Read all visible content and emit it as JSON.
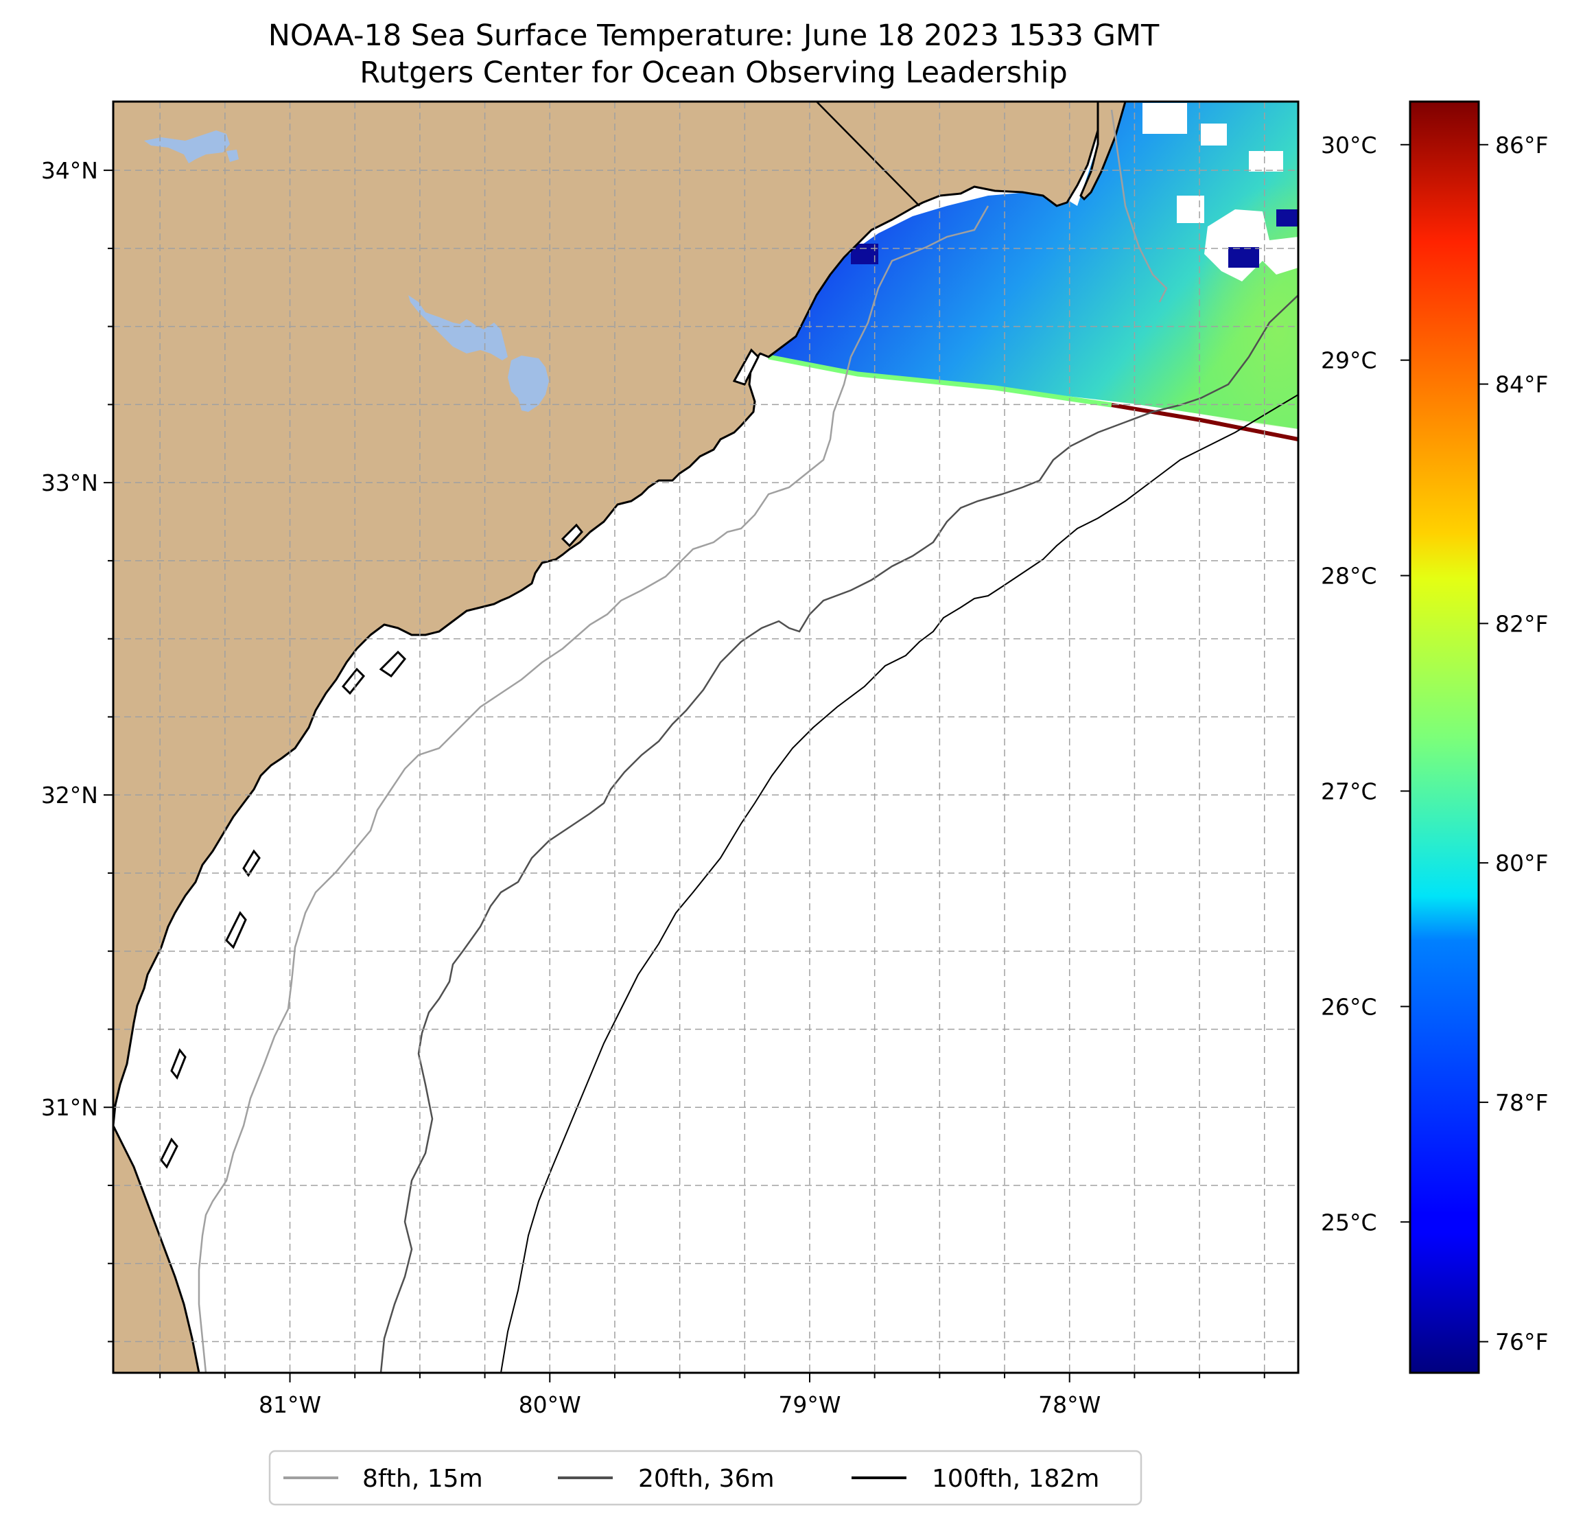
{
  "title": {
    "line1": "NOAA-18 Sea Surface Temperature: June 18 2023 1533 GMT",
    "line2": "Rutgers Center for Ocean Observing Leadership"
  },
  "map": {
    "lon_range": [
      -81.68,
      -77.12
    ],
    "lat_range": [
      30.15,
      34.22
    ],
    "land_color": "#d2b48c",
    "lake_color": "#a0bee6",
    "ocean_color": "#ffffff",
    "gridlines": "dashed",
    "lon_ticks": [
      {
        "value": -81,
        "label": "81°W"
      },
      {
        "value": -80,
        "label": "80°W"
      },
      {
        "value": -79,
        "label": "79°W"
      },
      {
        "value": -78,
        "label": "78°W"
      }
    ],
    "lat_ticks": [
      {
        "value": 34,
        "label": "34°N"
      },
      {
        "value": 33,
        "label": "33°N"
      },
      {
        "value": 32,
        "label": "32°N"
      },
      {
        "value": 31,
        "label": "31°N"
      }
    ]
  },
  "colorbar": {
    "colormap": "jet",
    "celsius_range": [
      24.3,
      30.2
    ],
    "celsius_ticks": [
      {
        "value": 30,
        "label": "30°C"
      },
      {
        "value": 29,
        "label": "29°C"
      },
      {
        "value": 28,
        "label": "28°C"
      },
      {
        "value": 27,
        "label": "27°C"
      },
      {
        "value": 26,
        "label": "26°C"
      },
      {
        "value": 25,
        "label": "25°C"
      }
    ],
    "fahrenheit_ticks": [
      {
        "value": 86,
        "label": "86°F"
      },
      {
        "value": 84,
        "label": "84°F"
      },
      {
        "value": 82,
        "label": "82°F"
      },
      {
        "value": 80,
        "label": "80°F"
      },
      {
        "value": 78,
        "label": "78°F"
      },
      {
        "value": 76,
        "label": "76°F"
      }
    ]
  },
  "legend": {
    "items": [
      {
        "label": "8fth, 15m",
        "color": "#a0a0a0"
      },
      {
        "label": "20fth, 36m",
        "color": "#505050"
      },
      {
        "label": "100fth, 182m",
        "color": "#000000"
      }
    ]
  }
}
